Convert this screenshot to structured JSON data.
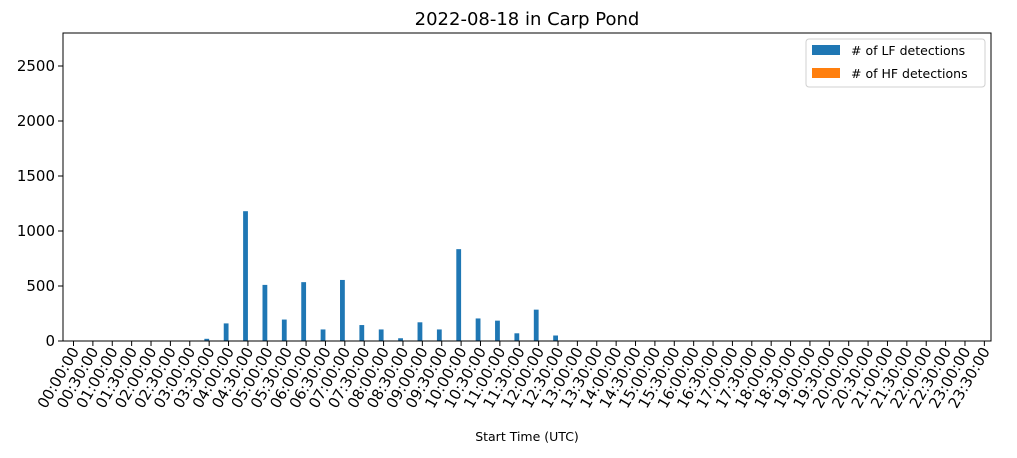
{
  "chart_data": {
    "type": "bar",
    "title": "2022-08-18 in Carp Pond",
    "xlabel": "Start Time (UTC)",
    "ylabel": "",
    "ylim": [
      0,
      2800
    ],
    "yticks": [
      0,
      500,
      1000,
      1500,
      2000,
      2500
    ],
    "grid": false,
    "legend_position": "top-right",
    "categories": [
      "00:00:00",
      "00:30:00",
      "01:00:00",
      "01:30:00",
      "02:00:00",
      "02:30:00",
      "03:00:00",
      "03:30:00",
      "04:00:00",
      "04:30:00",
      "05:00:00",
      "05:30:00",
      "06:00:00",
      "06:30:00",
      "07:00:00",
      "07:30:00",
      "08:00:00",
      "08:30:00",
      "09:00:00",
      "09:30:00",
      "10:00:00",
      "10:30:00",
      "11:00:00",
      "11:30:00",
      "12:00:00",
      "12:30:00",
      "13:00:00",
      "13:30:00",
      "14:00:00",
      "14:30:00",
      "15:00:00",
      "15:30:00",
      "16:00:00",
      "16:30:00",
      "17:00:00",
      "17:30:00",
      "18:00:00",
      "18:30:00",
      "19:00:00",
      "19:30:00",
      "20:00:00",
      "20:30:00",
      "21:00:00",
      "21:30:00",
      "22:00:00",
      "22:30:00",
      "23:00:00",
      "23:30:00"
    ],
    "series": [
      {
        "name": "# of LF detections",
        "color": "#1f77b4",
        "values": [
          0,
          0,
          0,
          0,
          0,
          0,
          0,
          20,
          160,
          1180,
          510,
          195,
          535,
          105,
          555,
          145,
          105,
          25,
          170,
          105,
          835,
          205,
          185,
          70,
          285,
          50,
          0,
          0,
          0,
          0,
          0,
          0,
          0,
          0,
          0,
          0,
          0,
          0,
          0,
          0,
          0,
          0,
          0,
          0,
          0,
          0,
          0,
          0
        ]
      },
      {
        "name": "# of HF detections",
        "color": "#ff7f0e",
        "values": [
          0,
          0,
          0,
          0,
          0,
          0,
          0,
          0,
          0,
          0,
          0,
          0,
          0,
          0,
          0,
          0,
          0,
          0,
          0,
          0,
          0,
          0,
          0,
          0,
          0,
          0,
          0,
          0,
          0,
          0,
          0,
          0,
          0,
          0,
          0,
          0,
          0,
          0,
          0,
          0,
          0,
          0,
          0,
          0,
          0,
          0,
          0,
          0
        ]
      }
    ]
  }
}
